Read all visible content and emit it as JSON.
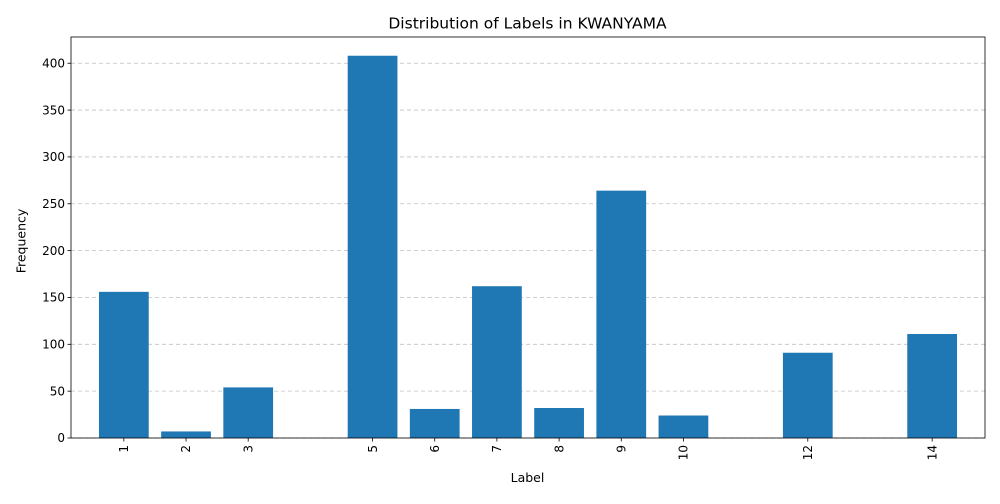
{
  "chart_data": {
    "type": "bar",
    "title": "Distribution of Labels in KWANYAMA",
    "xlabel": "Label",
    "ylabel": "Frequency",
    "x": [
      1,
      2,
      3,
      5,
      6,
      7,
      8,
      9,
      10,
      12,
      14
    ],
    "values": [
      156,
      7,
      54,
      408,
      31,
      162,
      32,
      264,
      24,
      91,
      111
    ],
    "xticks": [
      1,
      2,
      3,
      5,
      6,
      7,
      8,
      9,
      10,
      12,
      14
    ],
    "xlim": [
      0.15,
      14.85
    ],
    "ylim": [
      0,
      428
    ],
    "yticks": [
      0,
      50,
      100,
      150,
      200,
      250,
      300,
      350,
      400
    ],
    "grid": "y-dashed",
    "bar_color": "#1f77b4",
    "xtick_rotation": "vertical"
  }
}
